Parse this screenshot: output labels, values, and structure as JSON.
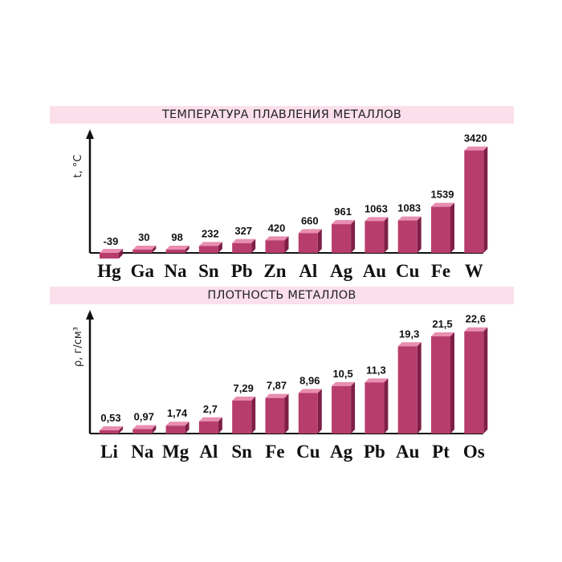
{
  "colors": {
    "front": "#b73d6c",
    "side": "#7f1f48",
    "top": "#e88eb0",
    "banner": "#fbe0ec",
    "axis": "#111111"
  },
  "chart_data": [
    {
      "type": "bar",
      "title": "ТЕМПЕРАТУРА ПЛАВЛЕНИЯ МЕТАЛЛОВ",
      "ylabel": "t, °C",
      "categories": [
        "Hg",
        "Ga",
        "Na",
        "Sn",
        "Pb",
        "Zn",
        "Al",
        "Ag",
        "Au",
        "Cu",
        "Fe",
        "W"
      ],
      "values": [
        -39,
        30,
        98,
        232,
        327,
        420,
        660,
        961,
        1063,
        1083,
        1539,
        3420
      ],
      "value_labels": [
        "-39",
        "30",
        "98",
        "232",
        "327",
        "420",
        "660",
        "961",
        "1063",
        "1083",
        "1539",
        "3420"
      ],
      "ylim": [
        -60,
        3700
      ]
    },
    {
      "type": "bar",
      "title": "ПЛОТНОСТЬ МЕТАЛЛОВ",
      "ylabel": "ρ, г/см³",
      "categories": [
        "Li",
        "Na",
        "Mg",
        "Al",
        "Sn",
        "Fe",
        "Cu",
        "Ag",
        "Pb",
        "Au",
        "Pt",
        "Os"
      ],
      "values": [
        0.53,
        0.97,
        1.74,
        2.7,
        7.29,
        7.87,
        8.96,
        10.5,
        11.3,
        19.3,
        21.5,
        22.6
      ],
      "value_labels": [
        "0,53",
        "0,97",
        "1,74",
        "2,7",
        "7,29",
        "7,87",
        "8,96",
        "10,5",
        "11,3",
        "19,3",
        "21,5",
        "22,6"
      ],
      "ylim": [
        0,
        24.5
      ]
    }
  ]
}
